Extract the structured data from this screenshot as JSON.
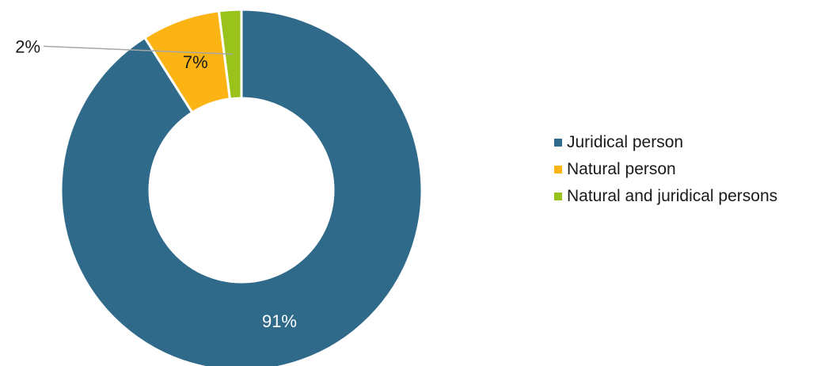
{
  "chart_data": {
    "type": "pie",
    "donut": true,
    "categories": [
      "Juridical person",
      "Natural person",
      "Natural and juridical persons"
    ],
    "values": [
      91,
      7,
      2
    ],
    "labels": [
      "91%",
      "7%",
      "2%"
    ],
    "colors": [
      "#306a8a",
      "#fcb314",
      "#99c31a"
    ],
    "legend": "right"
  }
}
